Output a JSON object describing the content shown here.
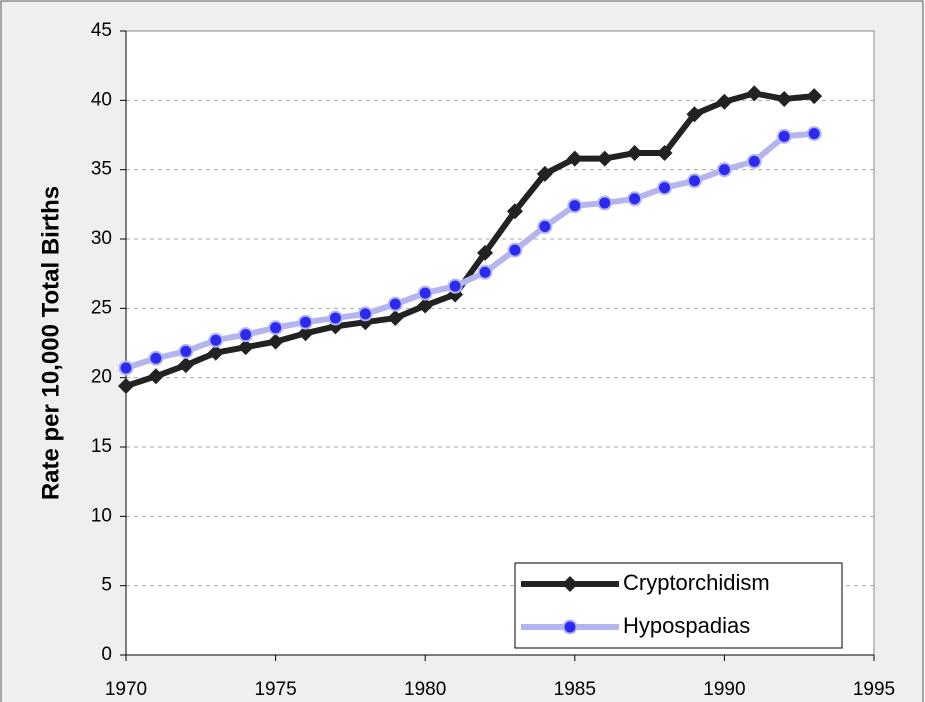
{
  "chart_data": {
    "type": "line",
    "y_label": "Rate per 10,000 Total Births",
    "x": [
      1970,
      1971,
      1972,
      1973,
      1974,
      1975,
      1976,
      1977,
      1978,
      1979,
      1980,
      1981,
      1982,
      1983,
      1984,
      1985,
      1986,
      1987,
      1988,
      1989,
      1990,
      1991,
      1992,
      1993
    ],
    "series": [
      {
        "name": "Cryptorchidism",
        "color": "#222222",
        "marker": "diamond",
        "values": [
          19.4,
          20.1,
          20.9,
          21.8,
          22.2,
          22.6,
          23.2,
          23.7,
          24.0,
          24.3,
          25.2,
          26.0,
          29.0,
          32.0,
          34.7,
          35.8,
          35.8,
          36.2,
          36.2,
          39.0,
          39.9,
          40.5,
          40.1,
          40.3
        ]
      },
      {
        "name": "Hypospadias",
        "color": "#b4b4ee",
        "marker_color": "#2a2af0",
        "marker": "circle",
        "values": [
          20.7,
          21.4,
          21.9,
          22.7,
          23.1,
          23.6,
          24.0,
          24.3,
          24.6,
          25.3,
          26.1,
          26.6,
          27.6,
          29.2,
          30.9,
          32.4,
          32.6,
          32.9,
          33.7,
          34.2,
          35.0,
          35.6,
          37.4,
          37.6
        ]
      }
    ],
    "xlim": [
      1970,
      1995
    ],
    "xticks": [
      1970,
      1975,
      1980,
      1985,
      1990,
      1995
    ],
    "ylim": [
      0,
      45
    ],
    "yticks": [
      0,
      5,
      10,
      15,
      20,
      25,
      30,
      35,
      40,
      45
    ],
    "grid": true,
    "legend": "lower right"
  }
}
